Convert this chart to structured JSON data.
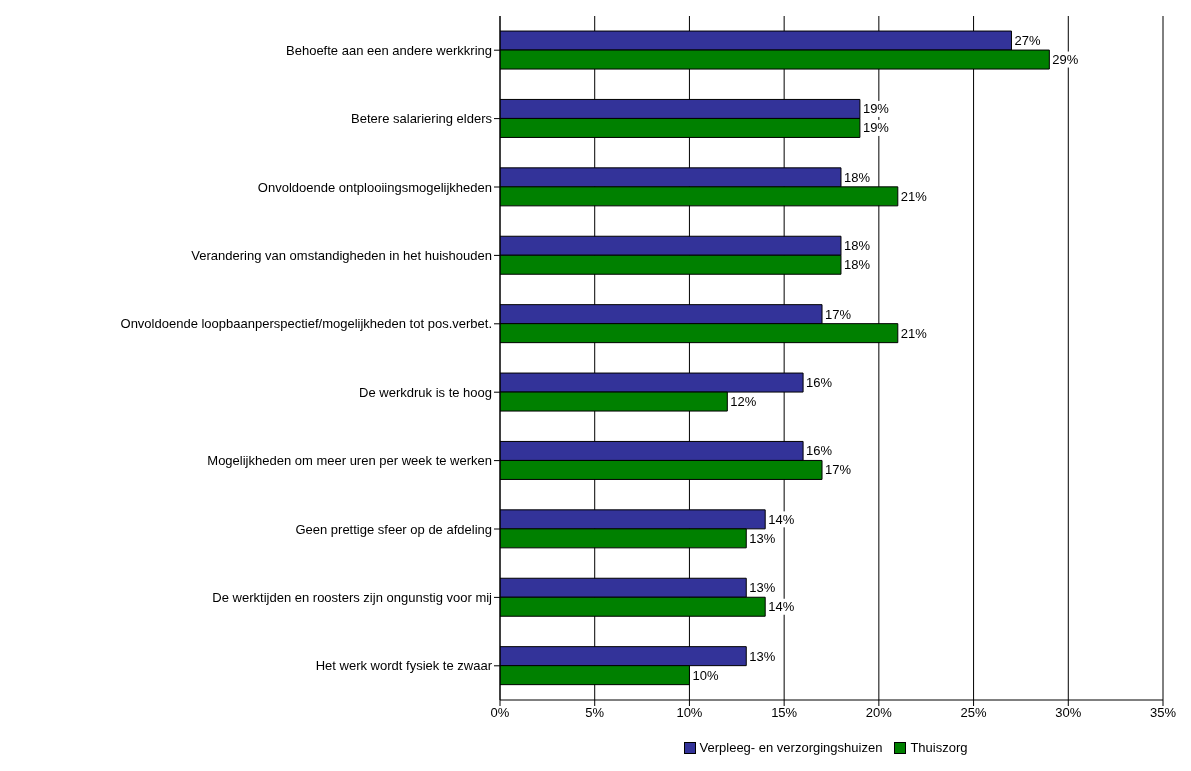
{
  "chart_data": {
    "type": "bar",
    "orientation": "horizontal",
    "categories": [
      "Behoefte aan een andere werkkring",
      "Betere salariering elders",
      "Onvoldoende ontplooiingsmogelijkheden",
      "Verandering van omstandigheden in het huishouden",
      "Onvoldoende loopbaanperspectief/mogelijkheden tot pos.verbet.",
      "De werkdruk is te hoog",
      "Mogelijkheden om meer uren per week te werken",
      "Geen prettige sfeer op de afdeling",
      "De werktijden en roosters zijn ongunstig voor mij",
      "Het werk wordt fysiek te zwaar"
    ],
    "series": [
      {
        "name": "Verpleeg- en verzorgingshuizen",
        "color": "#333399",
        "values": [
          27,
          19,
          18,
          18,
          17,
          16,
          16,
          14,
          13,
          13
        ],
        "value_labels": [
          "27%",
          "19%",
          "18%",
          "18%",
          "17%",
          "16%",
          "16%",
          "14%",
          "13%",
          "13%"
        ]
      },
      {
        "name": "Thuiszorg",
        "color": "#008000",
        "values": [
          29,
          19,
          21,
          18,
          21,
          12,
          17,
          13,
          14,
          10
        ],
        "value_labels": [
          "29%",
          "19%",
          "21%",
          "18%",
          "21%",
          "12%",
          "17%",
          "13%",
          "14%",
          "10%"
        ]
      }
    ],
    "xlim": [
      0,
      35
    ],
    "xticks": [
      {
        "value": 0,
        "label": "0%"
      },
      {
        "value": 5,
        "label": "5%"
      },
      {
        "value": 10,
        "label": "10%"
      },
      {
        "value": 15,
        "label": "15%"
      },
      {
        "value": 20,
        "label": "20%"
      },
      {
        "value": 25,
        "label": "25%"
      },
      {
        "value": 30,
        "label": "30%"
      },
      {
        "value": 35,
        "label": "35%"
      }
    ],
    "grid": "x",
    "legend": "bottom"
  }
}
